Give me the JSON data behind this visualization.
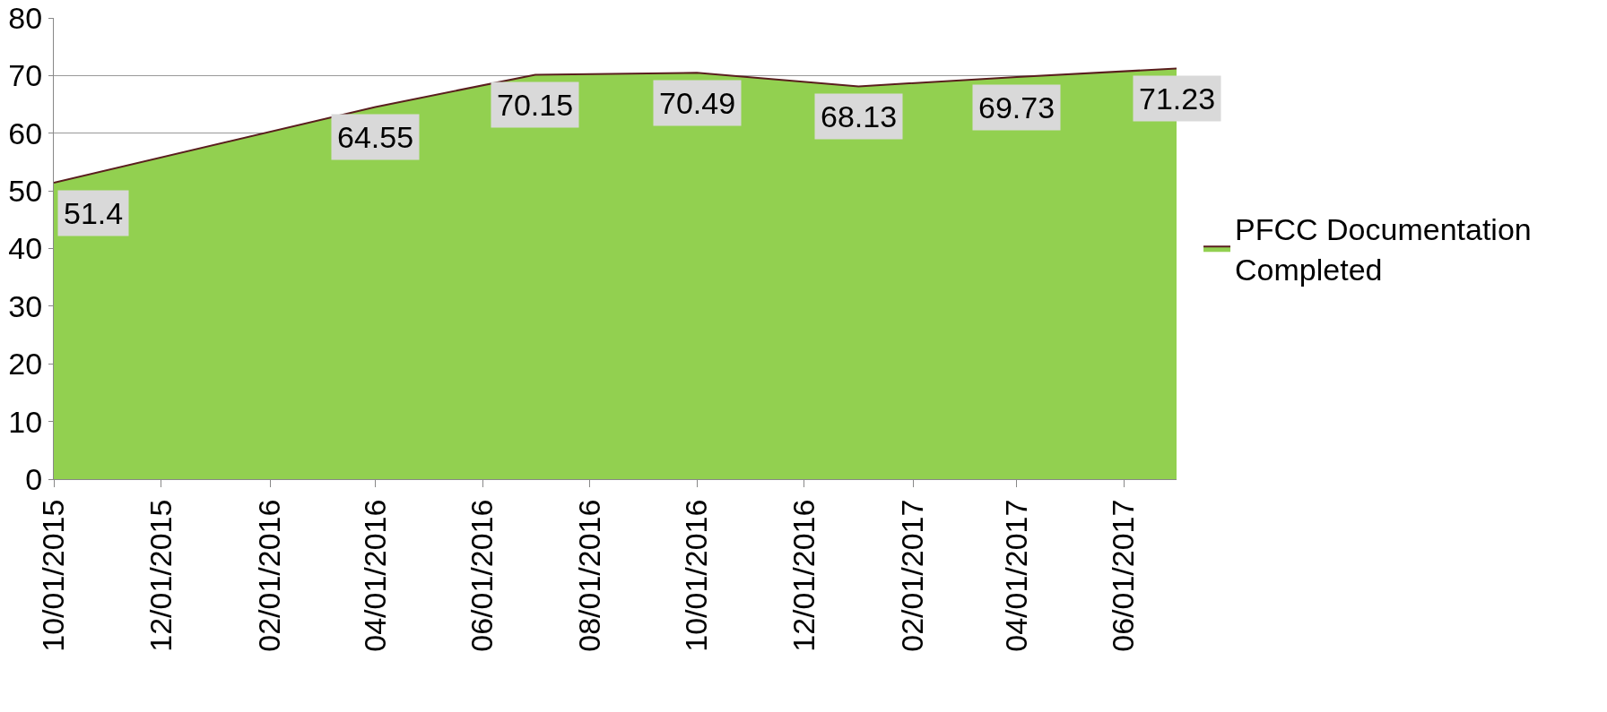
{
  "chart_data": {
    "type": "area",
    "x": [
      "2015-10-01",
      "2016-04-01",
      "2016-07-01",
      "2016-10-01",
      "2017-01-01",
      "2017-04-01",
      "2017-07-01"
    ],
    "series": [
      {
        "name": "PFCC Documentation Completed",
        "color": "#92d050",
        "values": [
          51.4,
          64.55,
          70.15,
          70.49,
          68.13,
          69.73,
          71.23
        ]
      }
    ],
    "xlim": [
      "2015-10-01",
      "2017-07-01"
    ],
    "xticks": [
      {
        "value": "2015-10-01",
        "label": "10/01/2015"
      },
      {
        "value": "2015-12-01",
        "label": "12/01/2015"
      },
      {
        "value": "2016-02-01",
        "label": "02/01/2016"
      },
      {
        "value": "2016-04-01",
        "label": "04/01/2016"
      },
      {
        "value": "2016-06-01",
        "label": "06/01/2016"
      },
      {
        "value": "2016-08-01",
        "label": "08/01/2016"
      },
      {
        "value": "2016-10-01",
        "label": "10/01/2016"
      },
      {
        "value": "2016-12-01",
        "label": "12/01/2016"
      },
      {
        "value": "2017-02-01",
        "label": "02/01/2017"
      },
      {
        "value": "2017-04-01",
        "label": "04/01/2017"
      },
      {
        "value": "2017-06-01",
        "label": "06/01/2017"
      }
    ],
    "ylim": [
      0,
      80
    ],
    "yticks": [
      0,
      10,
      20,
      30,
      40,
      50,
      60,
      70,
      80
    ],
    "grid": "y",
    "legend": "right",
    "data_labels": true
  }
}
